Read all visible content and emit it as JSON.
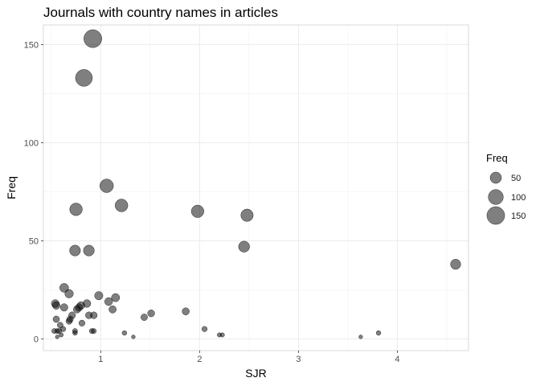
{
  "chart_data": {
    "type": "scatter",
    "title": "Journals with country names in articles",
    "xlabel": "SJR",
    "ylabel": "Freq",
    "xlim": [
      0.42,
      4.72
    ],
    "ylim": [
      -6,
      160
    ],
    "xticks": [
      1,
      2,
      3,
      4
    ],
    "yticks": [
      0,
      50,
      100,
      150
    ],
    "grid": true,
    "size_legend": {
      "title": "Freq",
      "placement": "right",
      "entries": [
        {
          "label": "50",
          "value": 50
        },
        {
          "label": "100",
          "value": 100
        },
        {
          "label": "150",
          "value": 150
        }
      ]
    },
    "points": [
      {
        "x": 0.92,
        "y": 153
      },
      {
        "x": 0.83,
        "y": 133
      },
      {
        "x": 1.06,
        "y": 78
      },
      {
        "x": 1.21,
        "y": 68
      },
      {
        "x": 0.75,
        "y": 66
      },
      {
        "x": 1.98,
        "y": 65
      },
      {
        "x": 2.48,
        "y": 63
      },
      {
        "x": 2.45,
        "y": 47
      },
      {
        "x": 0.74,
        "y": 45
      },
      {
        "x": 0.88,
        "y": 45
      },
      {
        "x": 4.59,
        "y": 38
      },
      {
        "x": 0.63,
        "y": 26
      },
      {
        "x": 0.68,
        "y": 23
      },
      {
        "x": 0.98,
        "y": 22
      },
      {
        "x": 1.15,
        "y": 21
      },
      {
        "x": 1.08,
        "y": 19
      },
      {
        "x": 0.54,
        "y": 18
      },
      {
        "x": 0.55,
        "y": 17
      },
      {
        "x": 0.86,
        "y": 18
      },
      {
        "x": 0.8,
        "y": 17
      },
      {
        "x": 0.78,
        "y": 16
      },
      {
        "x": 0.63,
        "y": 16
      },
      {
        "x": 0.76,
        "y": 15
      },
      {
        "x": 1.12,
        "y": 15
      },
      {
        "x": 1.86,
        "y": 14
      },
      {
        "x": 1.51,
        "y": 13
      },
      {
        "x": 0.71,
        "y": 12
      },
      {
        "x": 0.88,
        "y": 12
      },
      {
        "x": 0.93,
        "y": 12
      },
      {
        "x": 1.44,
        "y": 11
      },
      {
        "x": 0.69,
        "y": 10
      },
      {
        "x": 0.55,
        "y": 10
      },
      {
        "x": 0.68,
        "y": 9
      },
      {
        "x": 0.81,
        "y": 8
      },
      {
        "x": 0.59,
        "y": 7
      },
      {
        "x": 0.62,
        "y": 5
      },
      {
        "x": 2.05,
        "y": 5
      },
      {
        "x": 0.53,
        "y": 4
      },
      {
        "x": 0.56,
        "y": 4
      },
      {
        "x": 0.58,
        "y": 4
      },
      {
        "x": 0.74,
        "y": 4
      },
      {
        "x": 0.91,
        "y": 4
      },
      {
        "x": 0.93,
        "y": 4
      },
      {
        "x": 0.74,
        "y": 3
      },
      {
        "x": 1.24,
        "y": 3
      },
      {
        "x": 3.81,
        "y": 3
      },
      {
        "x": 0.6,
        "y": 2
      },
      {
        "x": 2.2,
        "y": 2
      },
      {
        "x": 2.23,
        "y": 2
      },
      {
        "x": 0.56,
        "y": 1
      },
      {
        "x": 1.33,
        "y": 1
      },
      {
        "x": 3.63,
        "y": 1
      }
    ]
  }
}
